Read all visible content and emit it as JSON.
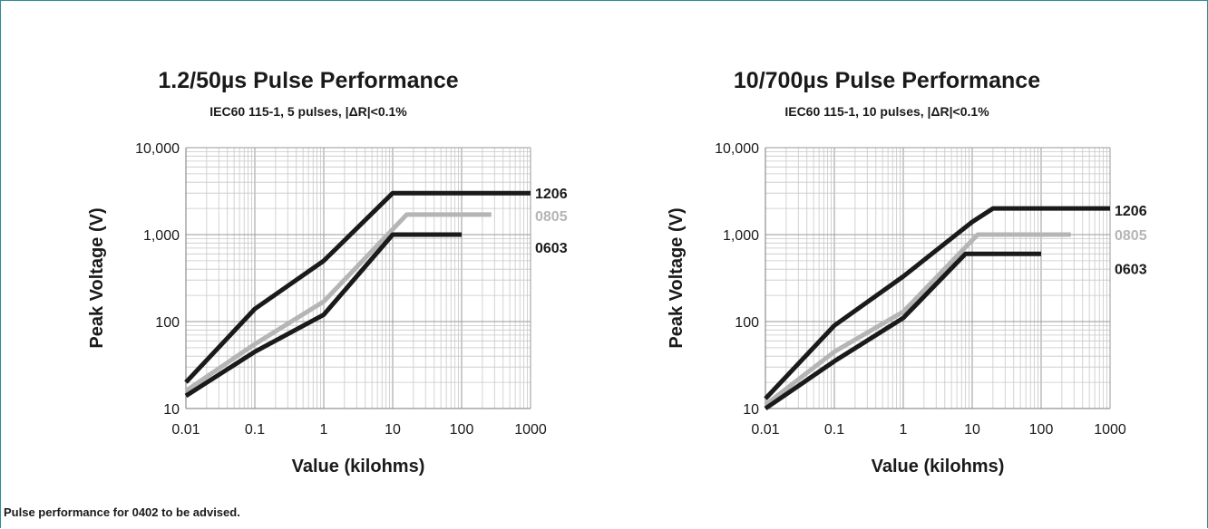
{
  "footnote": "Pulse performance for 0402 to be advised.",
  "colors": {
    "dark": "#1a1a1a",
    "light": "#b5b5b5",
    "grid": "#c8c8c8",
    "frame": "#2a8c96"
  },
  "chart_data": [
    {
      "type": "line",
      "title": "1.2/50µs Pulse Performance",
      "subtitle": "IEC60 115-1, 5 pulses, |ΔR|<0.1%",
      "xlabel": "Value (kilohms)",
      "ylabel": "Peak Voltage (V)",
      "xscale": "log",
      "yscale": "log",
      "xlim": [
        0.01,
        1000
      ],
      "ylim": [
        10,
        10000
      ],
      "xticks": [
        "0.01",
        "0.1",
        "1",
        "10",
        "100",
        "1000"
      ],
      "yticks": [
        "10",
        "100",
        "1,000",
        "10,000"
      ],
      "grid": true,
      "series": [
        {
          "name": "1206",
          "color": "#1a1a1a",
          "x": [
            0.01,
            0.1,
            1,
            10,
            1000
          ],
          "y": [
            20,
            140,
            500,
            3000,
            3000
          ]
        },
        {
          "name": "0805",
          "color": "#b5b5b5",
          "x": [
            0.01,
            0.1,
            1,
            16,
            270
          ],
          "y": [
            16,
            55,
            170,
            1700,
            1700
          ]
        },
        {
          "name": "0603",
          "color": "#1a1a1a",
          "x": [
            0.01,
            0.1,
            1,
            10,
            100
          ],
          "y": [
            14,
            45,
            120,
            1000,
            1000
          ]
        }
      ]
    },
    {
      "type": "line",
      "title": "10/700µs Pulse Performance",
      "subtitle": "IEC60 115-1, 10 pulses, |ΔR|<0.1%",
      "xlabel": "Value (kilohms)",
      "ylabel": "Peak Voltage (V)",
      "xscale": "log",
      "yscale": "log",
      "xlim": [
        0.01,
        1000
      ],
      "ylim": [
        10,
        10000
      ],
      "xticks": [
        "0.01",
        "0.1",
        "1",
        "10",
        "100",
        "1000"
      ],
      "yticks": [
        "10",
        "100",
        "1,000",
        "10,000"
      ],
      "grid": true,
      "series": [
        {
          "name": "1206",
          "color": "#1a1a1a",
          "x": [
            0.01,
            0.1,
            1,
            10,
            20,
            1000
          ],
          "y": [
            13,
            90,
            330,
            1400,
            2000,
            2000
          ]
        },
        {
          "name": "0805",
          "color": "#b5b5b5",
          "x": [
            0.01,
            0.1,
            1,
            12,
            270
          ],
          "y": [
            11,
            45,
            130,
            1000,
            1000
          ]
        },
        {
          "name": "0603",
          "color": "#1a1a1a",
          "x": [
            0.01,
            0.1,
            1,
            8,
            100
          ],
          "y": [
            10,
            35,
            110,
            600,
            600
          ]
        }
      ]
    }
  ]
}
